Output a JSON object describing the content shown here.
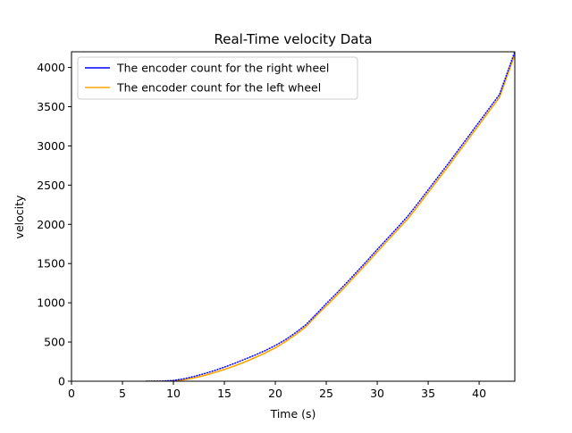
{
  "chart_data": {
    "type": "line",
    "title": "Real-Time velocity Data",
    "xlabel": "Time (s)",
    "ylabel": "velocity",
    "xlim": [
      0,
      43.5
    ],
    "ylim": [
      0,
      4200
    ],
    "xticks": [
      0,
      5,
      10,
      15,
      20,
      25,
      30,
      35,
      40
    ],
    "yticks": [
      0,
      500,
      1000,
      1500,
      2000,
      2500,
      3000,
      3500,
      4000
    ],
    "grid": false,
    "legend_position": "upper-left",
    "series": [
      {
        "name": "The encoder count for the right wheel",
        "color": "#0000ff",
        "x": [
          7.3,
          8,
          9,
          10,
          11,
          12,
          13,
          14,
          15,
          16,
          17,
          18,
          19,
          20,
          21,
          22,
          23,
          24.2,
          25,
          26,
          27,
          28,
          29,
          30,
          31,
          32,
          33,
          34,
          35,
          36,
          37,
          38,
          39,
          40,
          41,
          42,
          43.5
        ],
        "y": [
          0,
          0,
          2,
          10,
          30,
          60,
          95,
          135,
          180,
          228,
          280,
          333,
          390,
          455,
          530,
          620,
          720,
          880,
          990,
          1120,
          1255,
          1395,
          1535,
          1680,
          1820,
          1960,
          2105,
          2270,
          2440,
          2610,
          2780,
          2955,
          3130,
          3305,
          3480,
          3655,
          4200
        ]
      },
      {
        "name": "The encoder count for the left wheel",
        "color": "#ffa500",
        "x": [
          7.3,
          8,
          9,
          10,
          11,
          12,
          13,
          14,
          15,
          16,
          17,
          18,
          19,
          20,
          21,
          22,
          23,
          24.2,
          25,
          26,
          27,
          28,
          29,
          30,
          31,
          32,
          33,
          34,
          35,
          36,
          37,
          38,
          39,
          40,
          41,
          42,
          43.5
        ],
        "y": [
          0,
          0,
          0,
          5,
          18,
          42,
          72,
          110,
          150,
          195,
          245,
          300,
          360,
          425,
          505,
          595,
          695,
          860,
          960,
          1090,
          1225,
          1365,
          1505,
          1650,
          1790,
          1930,
          2070,
          2235,
          2405,
          2575,
          2745,
          2920,
          3095,
          3270,
          3445,
          3620,
          4165
        ]
      }
    ]
  }
}
